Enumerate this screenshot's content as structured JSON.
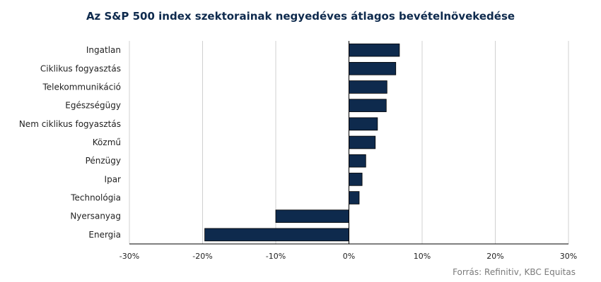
{
  "chart_data": {
    "type": "bar",
    "orientation": "horizontal",
    "title": "Az S&P 500 index szektorainak negyedéves átlagos bevételnövekedése",
    "source": "Forrás: Refinitiv, KBC Equitas",
    "unit": "%",
    "xlim": [
      -30,
      30
    ],
    "x_ticks": [
      -30,
      -20,
      -10,
      0,
      10,
      20,
      30
    ],
    "x_tick_labels": [
      "-30%",
      "-20%",
      "-10%",
      "0%",
      "10%",
      "20%",
      "30%"
    ],
    "grid": true,
    "bar_color": "#0e2a4d",
    "categories": [
      "Ingatlan",
      "Ciklikus fogyasztás",
      "Telekommunikáció",
      "Egészségügy",
      "Nem ciklikus fogyasztás",
      "Közmű",
      "Pénzügy",
      "Ipar",
      "Technológia",
      "Nyersanyag",
      "Energia"
    ],
    "values": [
      6.9,
      6.4,
      5.2,
      5.1,
      3.9,
      3.6,
      2.3,
      1.8,
      1.4,
      -10.0,
      -19.7
    ]
  }
}
